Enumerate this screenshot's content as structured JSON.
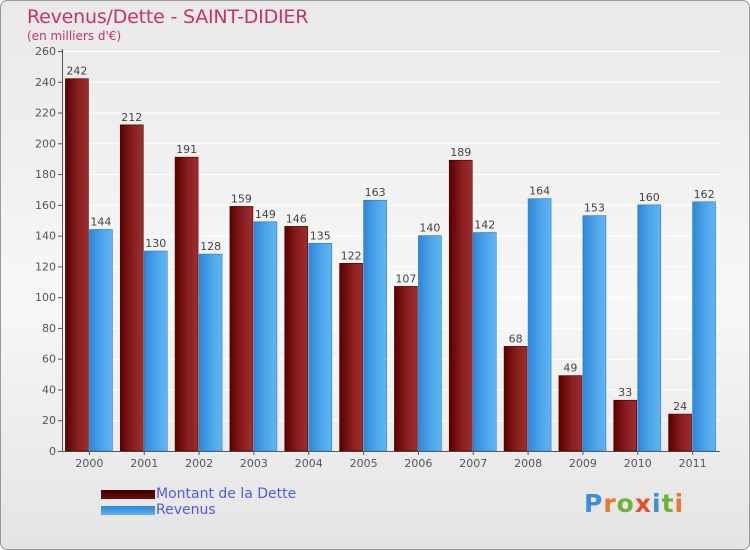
{
  "title": "Revenus/Dette - SAINT-DIDIER",
  "subtitle": "(en milliers d'€)",
  "colors": {
    "dette": "#7a1212",
    "revenus": "#4aa3ea",
    "text": "#c8306e",
    "legend_text": "#4d5ddb"
  },
  "legend": [
    {
      "label": "Montant de la Dette",
      "color": "#5a0000"
    },
    {
      "label": "Revenus",
      "color": "#4aa3ea"
    }
  ],
  "logo": {
    "text": "Proxiti"
  },
  "chart_data": {
    "type": "bar",
    "categories": [
      "2000",
      "2001",
      "2002",
      "2003",
      "2004",
      "2005",
      "2006",
      "2007",
      "2008",
      "2009",
      "2010",
      "2011"
    ],
    "series": [
      {
        "name": "Montant de la Dette",
        "values": [
          242,
          212,
          191,
          159,
          146,
          122,
          107,
          189,
          68,
          49,
          33,
          24
        ]
      },
      {
        "name": "Revenus",
        "values": [
          144,
          130,
          128,
          149,
          135,
          163,
          140,
          142,
          164,
          153,
          160,
          162
        ]
      }
    ],
    "ylim": [
      0,
      260
    ],
    "yticks": [
      0,
      20,
      40,
      60,
      80,
      100,
      120,
      140,
      160,
      180,
      200,
      220,
      240,
      260
    ],
    "grid": true,
    "legend_position": "bottom-left"
  }
}
